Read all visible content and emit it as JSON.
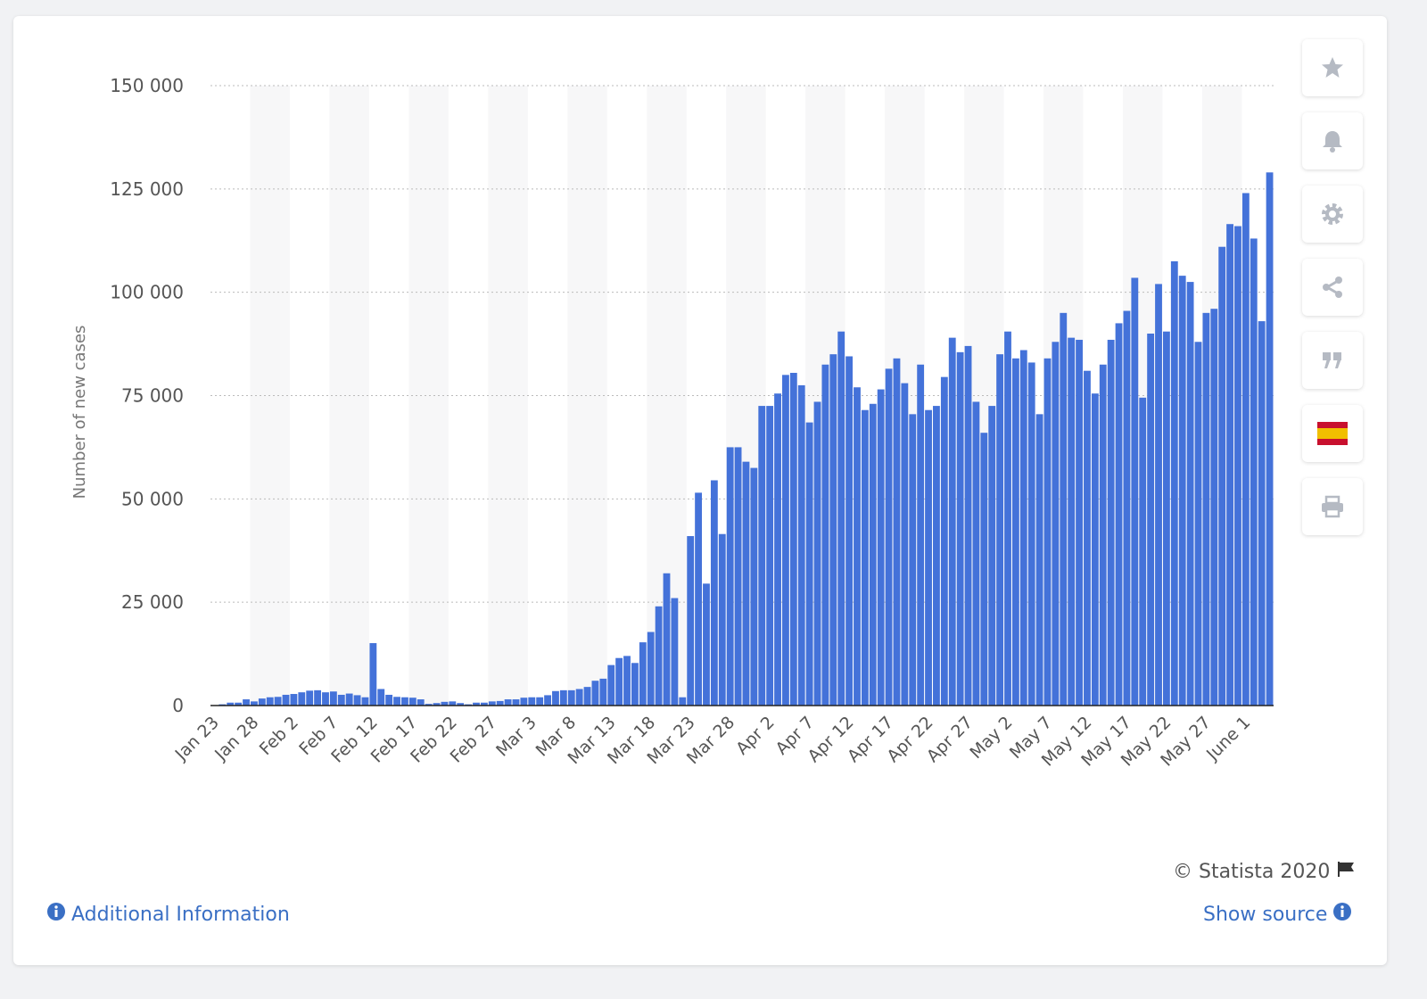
{
  "chart_data": {
    "type": "bar",
    "y_label": "Number of new cases",
    "categories": [
      "Jan 23",
      null,
      null,
      null,
      null,
      "Jan 28",
      null,
      null,
      null,
      null,
      "Feb 2",
      null,
      null,
      null,
      null,
      "Feb 7",
      null,
      null,
      null,
      null,
      "Feb 12",
      null,
      null,
      null,
      null,
      "Feb 17",
      null,
      null,
      null,
      null,
      "Feb 22",
      null,
      null,
      null,
      null,
      "Feb 27",
      null,
      null,
      null,
      null,
      "Mar 3",
      null,
      null,
      null,
      null,
      "Mar 8",
      null,
      null,
      null,
      null,
      "Mar 13",
      null,
      null,
      null,
      null,
      "Mar 18",
      null,
      null,
      null,
      null,
      "Mar 23",
      null,
      null,
      null,
      null,
      "Mar 28",
      null,
      null,
      null,
      null,
      "Apr 2",
      null,
      null,
      null,
      null,
      "Apr 7",
      null,
      null,
      null,
      null,
      "Apr 12",
      null,
      null,
      null,
      null,
      "Apr 17",
      null,
      null,
      null,
      null,
      "Apr 22",
      null,
      null,
      null,
      null,
      "Apr 27",
      null,
      null,
      null,
      null,
      "May 2",
      null,
      null,
      null,
      null,
      "May 7",
      null,
      null,
      null,
      null,
      "May 12",
      null,
      null,
      null,
      null,
      "May 17",
      null,
      null,
      null,
      null,
      "May 22",
      null,
      null,
      null,
      null,
      "May 27",
      null,
      null,
      null,
      null,
      "June 1",
      null,
      null,
      null
    ],
    "values": [
      100,
      300,
      700,
      700,
      1500,
      1000,
      1700,
      2000,
      2100,
      2600,
      2800,
      3200,
      3600,
      3700,
      3200,
      3400,
      2600,
      2900,
      2500,
      2000,
      15100,
      4000,
      2600,
      2100,
      2000,
      1900,
      1500,
      400,
      600,
      900,
      1000,
      600,
      300,
      700,
      700,
      1000,
      1100,
      1500,
      1500,
      1900,
      2000,
      2000,
      2500,
      3500,
      3700,
      3700,
      4000,
      4500,
      6000,
      6500,
      9800,
      11500,
      12000,
      10300,
      15300,
      17800,
      24000,
      32000,
      26000,
      2000,
      41000,
      51500,
      29500,
      54500,
      41500,
      62500,
      62500,
      59000,
      57500,
      72500,
      72500,
      75500,
      80000,
      80500,
      77500,
      68500,
      73500,
      82500,
      85000,
      90500,
      84500,
      77000,
      71500,
      73000,
      76500,
      81500,
      84000,
      78000,
      70500,
      82500,
      71500,
      72500,
      79500,
      89000,
      85500,
      87000,
      73500,
      66000,
      72500,
      85000,
      90500,
      84000,
      86000,
      83000,
      70500,
      84000,
      88000,
      95000,
      89000,
      88500,
      81000,
      75500,
      82500,
      88500,
      92500,
      95500,
      103500,
      74500,
      90000,
      102000,
      90500,
      107500,
      104000,
      102500,
      88000,
      95000,
      96000,
      111000,
      116500,
      116000,
      124000,
      113000,
      93000,
      129000
    ],
    "color": "#4472d9",
    "ylim": [
      0,
      150000
    ],
    "yticks": [
      0,
      {
        "value": 25000,
        "label": "25 000"
      },
      {
        "value": 50000,
        "label": "50 000"
      },
      {
        "value": 75000,
        "label": "75 000"
      },
      {
        "value": 100000,
        "label": "100 000"
      },
      {
        "value": 125000,
        "label": "125 000"
      },
      {
        "value": 150000,
        "label": "150 000"
      }
    ],
    "grid": true
  },
  "footer": {
    "credit": "© Statista 2020",
    "additional_info": "Additional Information",
    "show_source": "Show source"
  }
}
